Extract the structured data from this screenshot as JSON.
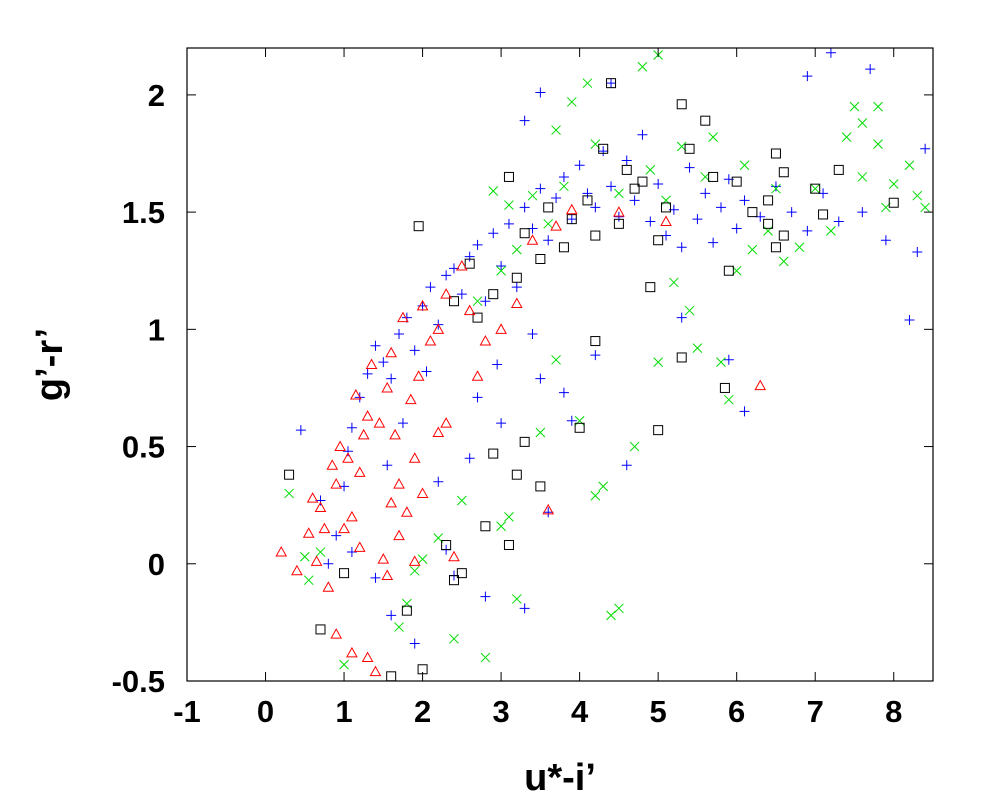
{
  "chart_data": {
    "type": "scatter",
    "title": "",
    "xlabel": "u*-i’",
    "ylabel": "g’-r’",
    "xlim": [
      -1,
      8.5
    ],
    "ylim": [
      -0.5,
      2.2
    ],
    "x_ticks": [
      -1,
      0,
      1,
      2,
      3,
      4,
      5,
      6,
      7,
      8
    ],
    "x_tick_labels": [
      "-1",
      "0",
      "1",
      "2",
      "3",
      "4",
      "5",
      "6",
      "7",
      "8"
    ],
    "y_ticks": [
      -0.5,
      0,
      0.5,
      1,
      1.5,
      2
    ],
    "y_tick_labels": [
      "-0.5",
      "0",
      "0.5",
      "1",
      "1.5",
      "2"
    ],
    "grid": false,
    "legend": "none",
    "series": [
      {
        "marker": "plus",
        "color": "#0000ff",
        "points": [
          [
            0.45,
            0.57
          ],
          [
            0.7,
            0.27
          ],
          [
            0.9,
            0.12
          ],
          [
            1.0,
            0.33
          ],
          [
            1.05,
            0.48
          ],
          [
            1.1,
            0.58
          ],
          [
            1.2,
            0.71
          ],
          [
            1.3,
            0.81
          ],
          [
            1.4,
            0.93
          ],
          [
            1.5,
            0.86
          ],
          [
            1.6,
            0.79
          ],
          [
            1.7,
            0.98
          ],
          [
            1.8,
            1.05
          ],
          [
            1.9,
            0.91
          ],
          [
            2.0,
            1.1
          ],
          [
            2.1,
            1.18
          ],
          [
            2.2,
            1.02
          ],
          [
            2.3,
            1.23
          ],
          [
            2.4,
            1.26
          ],
          [
            2.5,
            1.15
          ],
          [
            2.6,
            1.31
          ],
          [
            2.7,
            1.36
          ],
          [
            2.8,
            1.12
          ],
          [
            2.9,
            1.41
          ],
          [
            3.0,
            1.27
          ],
          [
            3.1,
            1.45
          ],
          [
            3.2,
            1.18
          ],
          [
            3.3,
            1.52
          ],
          [
            3.4,
            1.43
          ],
          [
            3.5,
            1.6
          ],
          [
            3.6,
            1.38
          ],
          [
            3.7,
            1.56
          ],
          [
            3.8,
            1.65
          ],
          [
            3.9,
            1.47
          ],
          [
            4.0,
            1.7
          ],
          [
            4.1,
            1.58
          ],
          [
            4.2,
            1.52
          ],
          [
            4.3,
            1.76
          ],
          [
            4.4,
            1.61
          ],
          [
            4.5,
            1.48
          ],
          [
            4.6,
            1.72
          ],
          [
            4.7,
            1.55
          ],
          [
            4.8,
            1.83
          ],
          [
            4.9,
            1.46
          ],
          [
            5.0,
            1.62
          ],
          [
            5.1,
            1.4
          ],
          [
            5.2,
            1.51
          ],
          [
            5.3,
            1.35
          ],
          [
            5.4,
            1.69
          ],
          [
            5.5,
            1.47
          ],
          [
            5.6,
            1.58
          ],
          [
            5.7,
            1.37
          ],
          [
            5.8,
            1.52
          ],
          [
            5.9,
            1.64
          ],
          [
            6.0,
            1.43
          ],
          [
            6.1,
            1.55
          ],
          [
            6.3,
            1.48
          ],
          [
            6.5,
            1.61
          ],
          [
            6.7,
            1.5
          ],
          [
            6.9,
            1.42
          ],
          [
            7.1,
            1.58
          ],
          [
            7.3,
            1.46
          ],
          [
            7.6,
            1.5
          ],
          [
            7.9,
            1.38
          ],
          [
            8.2,
            1.04
          ],
          [
            8.3,
            1.33
          ],
          [
            8.4,
            1.77
          ],
          [
            7.7,
            2.11
          ],
          [
            6.9,
            2.08
          ],
          [
            7.2,
            2.18
          ],
          [
            4.4,
            2.05
          ],
          [
            3.5,
            2.01
          ],
          [
            3.3,
            1.89
          ],
          [
            2.3,
            0.06
          ],
          [
            1.9,
            -0.34
          ],
          [
            1.6,
            -0.22
          ],
          [
            2.4,
            -0.05
          ],
          [
            2.8,
            -0.14
          ],
          [
            3.3,
            -0.19
          ],
          [
            3.6,
            0.22
          ],
          [
            3.9,
            0.61
          ],
          [
            4.6,
            0.42
          ],
          [
            5.9,
            0.87
          ],
          [
            6.1,
            0.65
          ],
          [
            5.3,
            1.05
          ],
          [
            4.2,
            0.89
          ],
          [
            3.8,
            0.73
          ],
          [
            3.5,
            0.79
          ],
          [
            2.2,
            0.35
          ],
          [
            1.4,
            -0.06
          ],
          [
            0.8,
            0.0
          ],
          [
            1.1,
            0.05
          ],
          [
            2.6,
            0.45
          ],
          [
            3.0,
            0.6
          ],
          [
            2.95,
            0.85
          ],
          [
            3.4,
            0.98
          ],
          [
            2.7,
            0.71
          ],
          [
            1.55,
            0.42
          ],
          [
            1.75,
            0.6
          ],
          [
            2.05,
            0.82
          ]
        ]
      },
      {
        "marker": "cross",
        "color": "#00dd00",
        "points": [
          [
            0.3,
            0.3
          ],
          [
            0.5,
            0.03
          ],
          [
            0.55,
            -0.07
          ],
          [
            0.7,
            0.05
          ],
          [
            1.0,
            -0.43
          ],
          [
            1.7,
            -0.27
          ],
          [
            1.8,
            -0.17
          ],
          [
            1.9,
            -0.03
          ],
          [
            2.0,
            0.02
          ],
          [
            2.2,
            0.11
          ],
          [
            2.4,
            -0.32
          ],
          [
            2.5,
            0.27
          ],
          [
            2.8,
            -0.4
          ],
          [
            3.0,
            0.16
          ],
          [
            3.1,
            0.2
          ],
          [
            3.2,
            -0.15
          ],
          [
            3.5,
            0.56
          ],
          [
            3.7,
            0.87
          ],
          [
            4.0,
            0.61
          ],
          [
            4.2,
            0.29
          ],
          [
            4.3,
            0.33
          ],
          [
            4.4,
            -0.22
          ],
          [
            4.5,
            -0.19
          ],
          [
            4.7,
            0.5
          ],
          [
            5.0,
            0.86
          ],
          [
            5.2,
            1.2
          ],
          [
            5.4,
            1.08
          ],
          [
            5.5,
            0.92
          ],
          [
            5.8,
            0.86
          ],
          [
            5.9,
            0.7
          ],
          [
            6.0,
            1.25
          ],
          [
            6.2,
            1.34
          ],
          [
            6.4,
            1.42
          ],
          [
            6.6,
            1.29
          ],
          [
            6.8,
            1.35
          ],
          [
            7.0,
            1.6
          ],
          [
            7.2,
            1.42
          ],
          [
            7.4,
            1.82
          ],
          [
            7.6,
            1.65
          ],
          [
            7.8,
            1.79
          ],
          [
            7.9,
            1.52
          ],
          [
            8.0,
            1.62
          ],
          [
            8.2,
            1.7
          ],
          [
            8.3,
            1.57
          ],
          [
            8.4,
            1.52
          ],
          [
            7.6,
            1.88
          ],
          [
            7.8,
            1.95
          ],
          [
            7.5,
            1.95
          ],
          [
            5.0,
            2.17
          ],
          [
            4.8,
            2.12
          ],
          [
            4.1,
            2.05
          ],
          [
            3.9,
            1.97
          ],
          [
            3.7,
            1.85
          ],
          [
            4.2,
            1.79
          ],
          [
            3.1,
            1.53
          ],
          [
            2.9,
            1.59
          ],
          [
            3.2,
            1.34
          ],
          [
            3.4,
            1.57
          ],
          [
            4.5,
            1.58
          ],
          [
            4.9,
            1.68
          ],
          [
            5.1,
            1.55
          ],
          [
            5.3,
            1.78
          ],
          [
            5.6,
            1.65
          ],
          [
            5.7,
            1.82
          ],
          [
            6.1,
            1.7
          ],
          [
            6.5,
            1.6
          ],
          [
            3.8,
            1.61
          ],
          [
            3.0,
            1.25
          ],
          [
            2.7,
            1.12
          ],
          [
            3.6,
            1.45
          ]
        ]
      },
      {
        "marker": "square",
        "color": "#000000",
        "points": [
          [
            0.3,
            0.38
          ],
          [
            0.7,
            -0.28
          ],
          [
            1.0,
            -0.04
          ],
          [
            1.6,
            -0.48
          ],
          [
            1.8,
            -0.2
          ],
          [
            2.0,
            -0.45
          ],
          [
            1.95,
            1.44
          ],
          [
            2.3,
            0.08
          ],
          [
            2.4,
            -0.07
          ],
          [
            2.5,
            -0.04
          ],
          [
            2.8,
            0.16
          ],
          [
            2.9,
            0.47
          ],
          [
            3.1,
            0.08
          ],
          [
            3.2,
            0.38
          ],
          [
            3.3,
            0.52
          ],
          [
            3.5,
            0.33
          ],
          [
            4.0,
            0.58
          ],
          [
            4.2,
            0.95
          ],
          [
            5.0,
            0.57
          ],
          [
            5.3,
            0.88
          ],
          [
            5.85,
            0.75
          ],
          [
            5.9,
            1.25
          ],
          [
            6.2,
            1.5
          ],
          [
            6.4,
            1.45
          ],
          [
            6.5,
            1.35
          ],
          [
            6.6,
            1.4
          ],
          [
            7.0,
            1.6
          ],
          [
            7.3,
            1.68
          ],
          [
            7.1,
            1.49
          ],
          [
            8.0,
            1.54
          ],
          [
            6.5,
            1.75
          ],
          [
            6.6,
            1.67
          ],
          [
            6.4,
            1.55
          ],
          [
            6.0,
            1.63
          ],
          [
            5.7,
            1.65
          ],
          [
            5.3,
            1.96
          ],
          [
            5.4,
            1.77
          ],
          [
            5.6,
            1.89
          ],
          [
            5.1,
            1.52
          ],
          [
            4.4,
            2.05
          ],
          [
            4.3,
            1.77
          ],
          [
            4.6,
            1.68
          ],
          [
            4.8,
            1.63
          ],
          [
            3.9,
            1.47
          ],
          [
            3.6,
            1.52
          ],
          [
            3.3,
            1.41
          ],
          [
            2.6,
            1.28
          ],
          [
            2.4,
            1.12
          ],
          [
            3.1,
            1.65
          ],
          [
            4.9,
            1.18
          ],
          [
            5.0,
            1.38
          ],
          [
            4.5,
            1.45
          ],
          [
            4.1,
            1.55
          ],
          [
            4.7,
            1.6
          ],
          [
            4.2,
            1.4
          ],
          [
            3.8,
            1.35
          ],
          [
            3.5,
            1.3
          ],
          [
            3.2,
            1.22
          ],
          [
            2.9,
            1.15
          ],
          [
            2.7,
            1.05
          ]
        ]
      },
      {
        "marker": "triangle",
        "color": "#ff0000",
        "points": [
          [
            0.2,
            0.05
          ],
          [
            0.4,
            -0.03
          ],
          [
            0.55,
            0.13
          ],
          [
            0.65,
            0.01
          ],
          [
            0.8,
            -0.1
          ],
          [
            0.9,
            -0.3
          ],
          [
            1.0,
            0.15
          ],
          [
            1.1,
            -0.38
          ],
          [
            1.2,
            0.07
          ],
          [
            1.3,
            -0.4
          ],
          [
            1.4,
            -0.46
          ],
          [
            1.5,
            0.02
          ],
          [
            1.6,
            0.26
          ],
          [
            1.7,
            0.34
          ],
          [
            1.8,
            0.22
          ],
          [
            1.9,
            0.01
          ],
          [
            2.4,
            0.03
          ],
          [
            2.2,
            0.56
          ],
          [
            1.9,
            0.45
          ],
          [
            3.6,
            0.23
          ],
          [
            6.3,
            0.76
          ],
          [
            2.2,
            1.0
          ],
          [
            2.8,
            0.95
          ],
          [
            3.2,
            1.11
          ],
          [
            2.6,
            1.08
          ],
          [
            3.4,
            1.38
          ],
          [
            3.7,
            1.44
          ],
          [
            3.9,
            1.51
          ],
          [
            4.5,
            1.5
          ],
          [
            5.1,
            1.46
          ],
          [
            2.5,
            1.27
          ],
          [
            2.3,
            1.15
          ],
          [
            2.1,
            0.95
          ],
          [
            1.95,
            0.8
          ],
          [
            1.2,
            0.39
          ],
          [
            0.9,
            0.34
          ],
          [
            0.7,
            0.24
          ],
          [
            0.95,
            0.5
          ],
          [
            1.15,
            0.72
          ],
          [
            1.35,
            0.85
          ],
          [
            1.45,
            0.6
          ],
          [
            1.25,
            0.55
          ],
          [
            1.05,
            0.45
          ],
          [
            1.6,
            0.9
          ],
          [
            1.75,
            1.05
          ],
          [
            1.85,
            0.7
          ],
          [
            2.0,
            1.1
          ],
          [
            1.55,
            0.75
          ],
          [
            1.3,
            0.63
          ],
          [
            0.85,
            0.42
          ],
          [
            1.55,
            -0.05
          ],
          [
            1.7,
            0.12
          ],
          [
            2.3,
            0.6
          ],
          [
            2.0,
            0.3
          ],
          [
            2.7,
            0.8
          ],
          [
            3.0,
            1.0
          ],
          [
            0.6,
            0.28
          ],
          [
            0.75,
            0.15
          ],
          [
            1.1,
            0.2
          ],
          [
            1.65,
            0.55
          ]
        ]
      }
    ]
  }
}
